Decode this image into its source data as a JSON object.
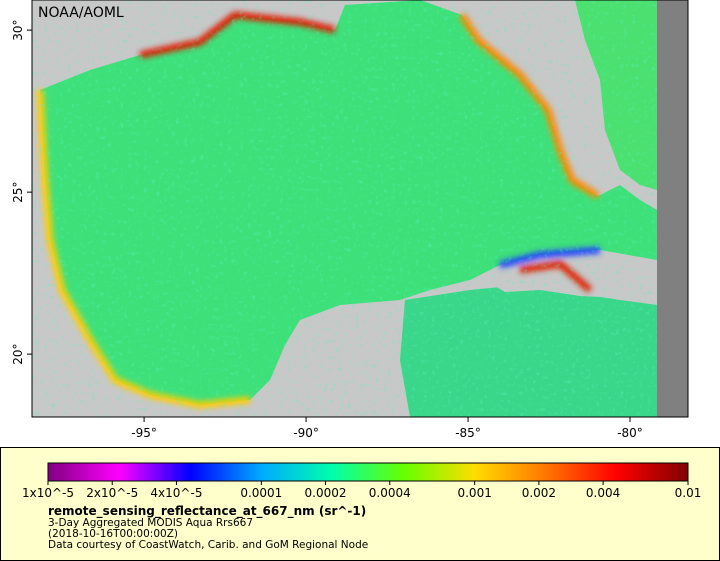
{
  "map": {
    "watermark": "NOAA/AOML",
    "lon_range": [
      -98.46,
      -78.21
    ],
    "lat_range": [
      18.06,
      30.93
    ],
    "lon_ticks": [
      {
        "value": -95,
        "label": "-95°"
      },
      {
        "value": -90,
        "label": "-90°"
      },
      {
        "value": -85,
        "label": "-85°"
      },
      {
        "value": -80,
        "label": "-80°"
      }
    ],
    "lat_ticks": [
      {
        "value": 30,
        "label": "30°"
      },
      {
        "value": 25,
        "label": "25°"
      },
      {
        "value": 20,
        "label": "20°"
      }
    ]
  },
  "legend": {
    "scale": "log",
    "lim": [
      1e-05,
      0.01
    ],
    "colors": [
      "#800080",
      "#ff00ff",
      "#0000ff",
      "#00aaff",
      "#00ffaa",
      "#66ff00",
      "#ffdd00",
      "#ff7700",
      "#ff0000",
      "#800000"
    ],
    "ticks": [
      {
        "value": 1e-05,
        "label": "1x10^-5"
      },
      {
        "value": 2e-05,
        "label": "2x10^-5"
      },
      {
        "value": 4e-05,
        "label": "4x10^-5"
      },
      0.0001,
      0.0002,
      0.0004,
      0.001,
      0.002,
      0.004,
      0.01
    ],
    "variable": "remote_sensing_reflectance_at_667_nm (sr^-1)",
    "dataset": "3-Day Aggregated MODIS Aqua Rrs667",
    "time": "(2018-10-16T00:00:00Z)",
    "credit": "Data courtesy of CoastWatch, Carib. and GoM Regional Node"
  }
}
